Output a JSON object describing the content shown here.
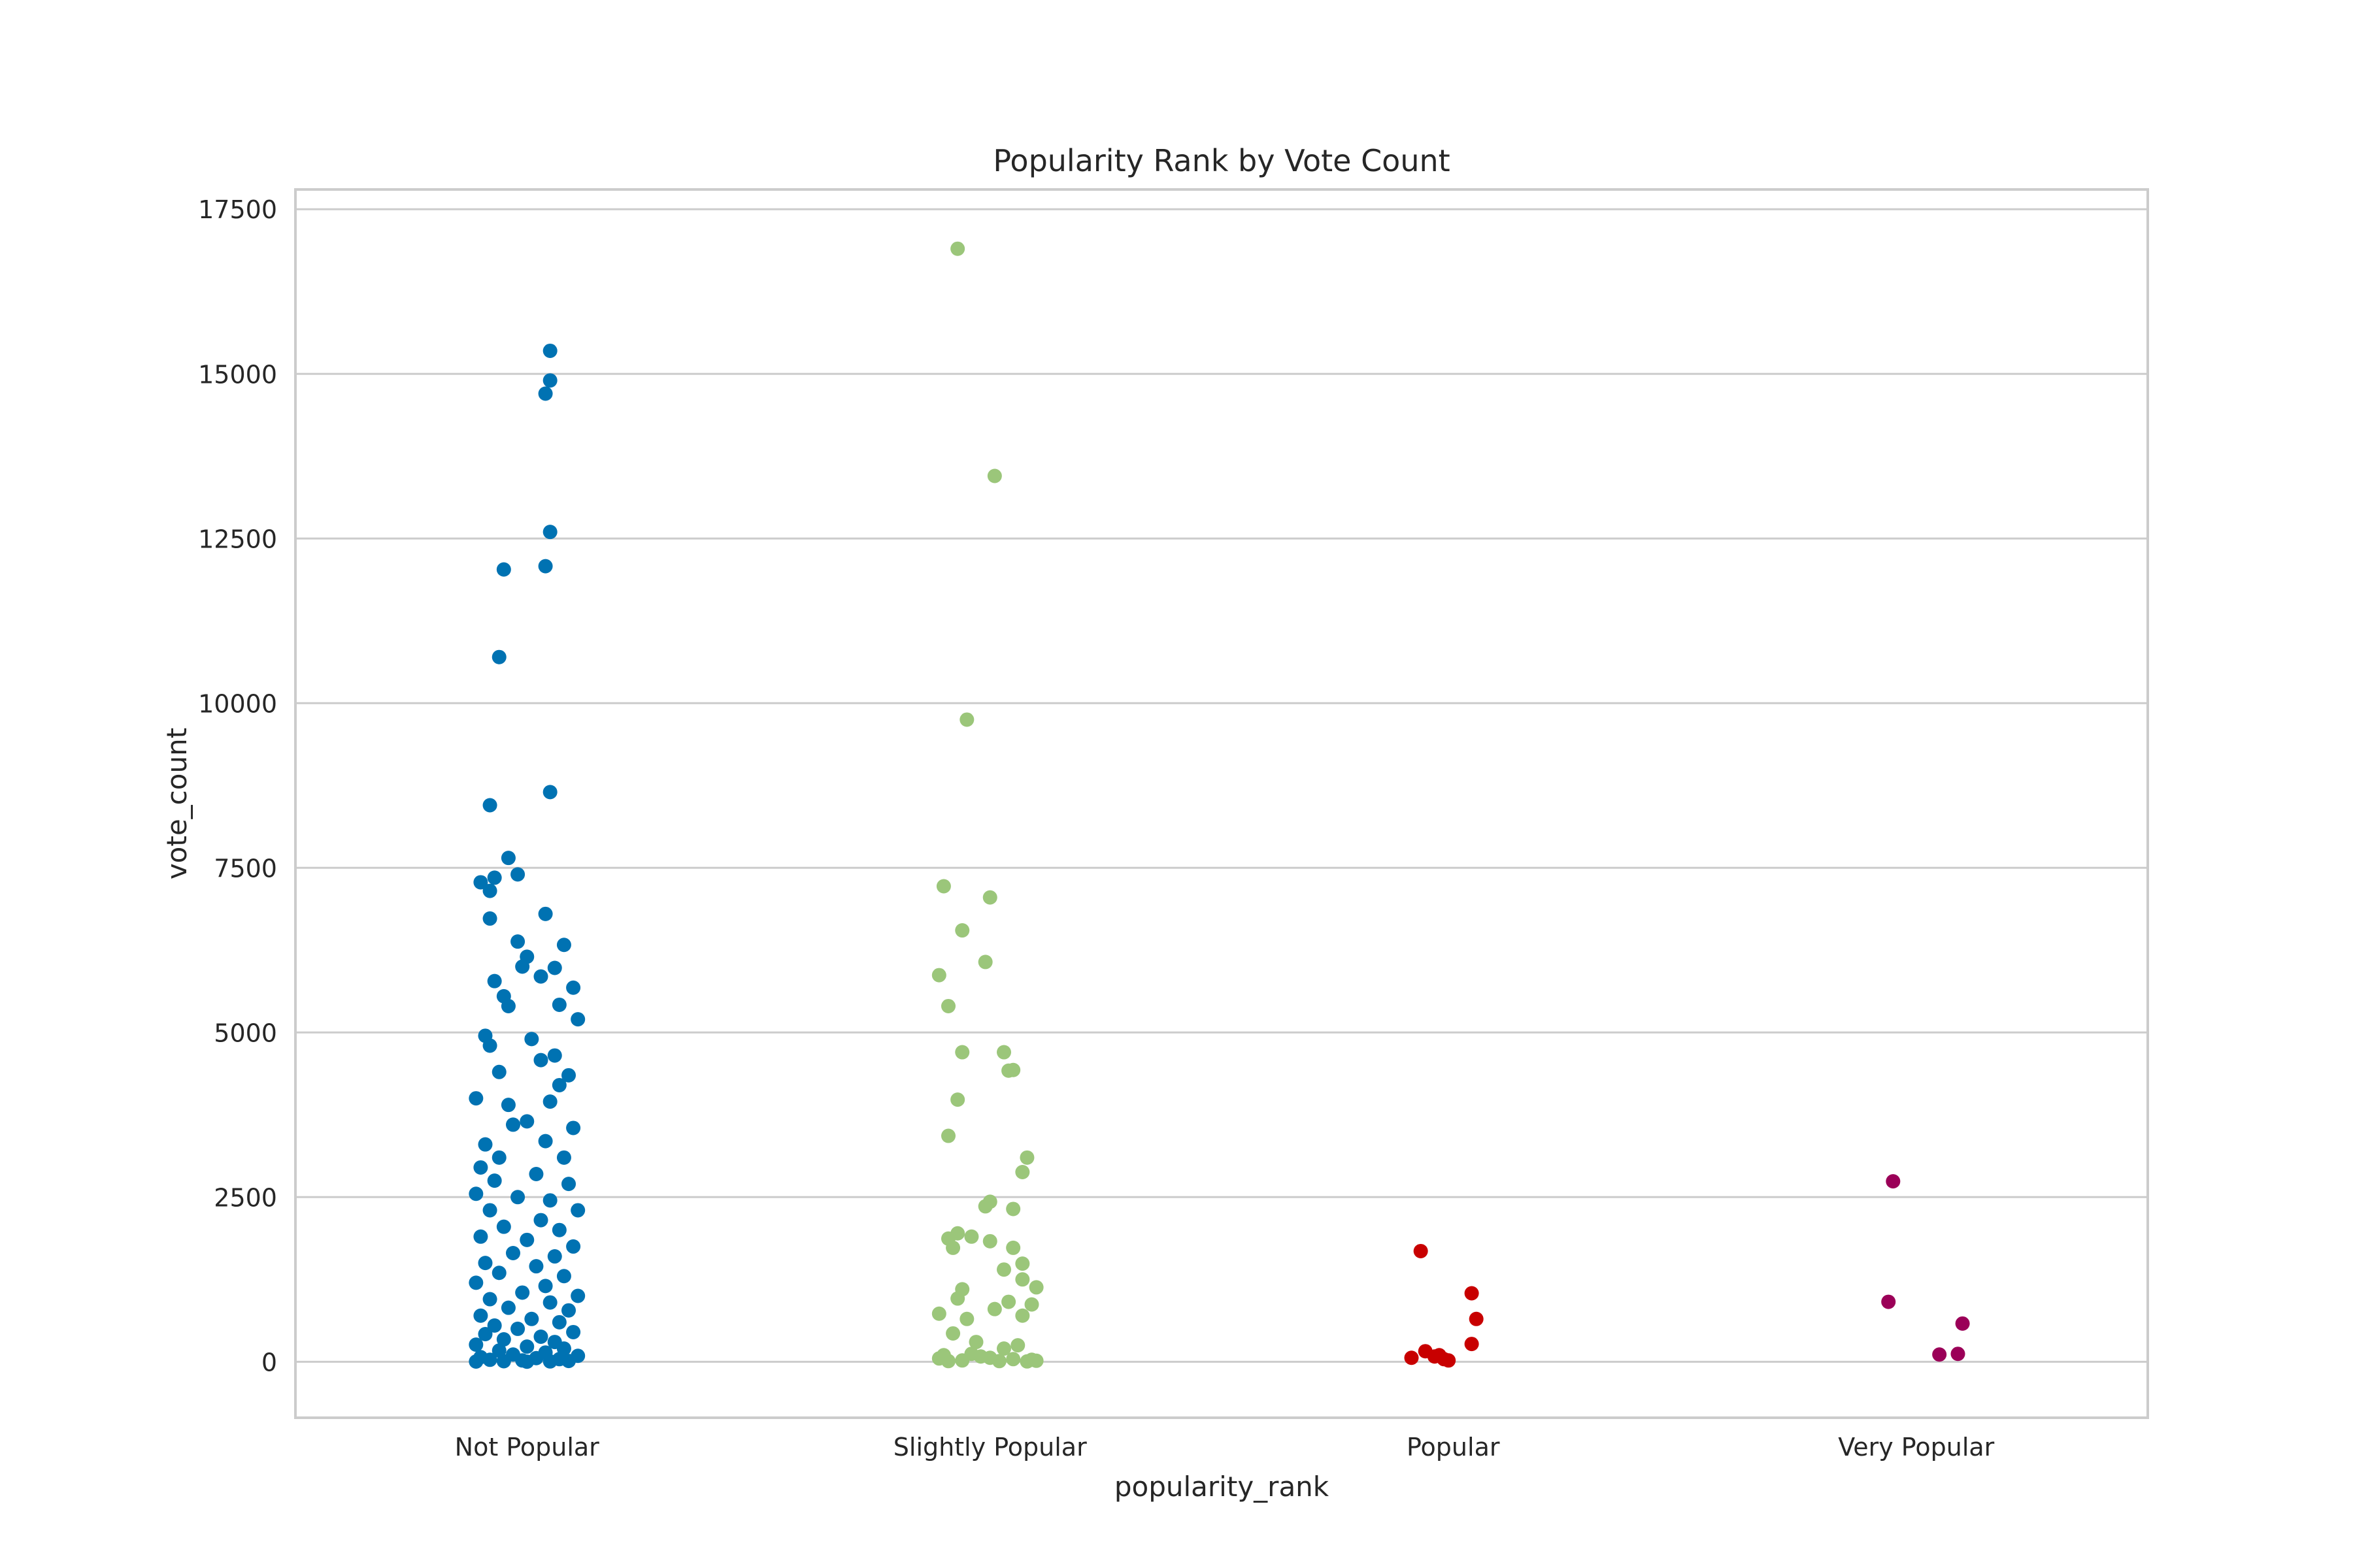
{
  "chart_data": {
    "type": "scatter",
    "subtype": "strip",
    "title": "Popularity Rank by Vote Count",
    "xlabel": "popularity_rank",
    "ylabel": "vote_count",
    "categories": [
      "Not Popular",
      "Slightly Popular",
      "Popular",
      "Very Popular"
    ],
    "ylim": [
      -850,
      17800
    ],
    "yticks": [
      0,
      2500,
      5000,
      7500,
      10000,
      12500,
      15000,
      17500
    ],
    "ytick_labels": [
      "0",
      "2500",
      "5000",
      "7500",
      "10000",
      "12500",
      "15000",
      "17500"
    ],
    "grid": true,
    "legend": "none",
    "colors": [
      "#0072b2",
      "#9bc67a",
      "#c80000",
      "#9b0058"
    ],
    "series": [
      {
        "category": "Not Popular",
        "color": "#0072b2",
        "points": [
          [
            0.05,
            15350
          ],
          [
            0.05,
            14900
          ],
          [
            0.04,
            14700
          ],
          [
            0.05,
            12600
          ],
          [
            0.04,
            12080
          ],
          [
            -0.05,
            12030
          ],
          [
            -0.06,
            10700
          ],
          [
            -0.08,
            8450
          ],
          [
            0.05,
            8650
          ],
          [
            -0.04,
            7650
          ],
          [
            -0.1,
            7280
          ],
          [
            -0.07,
            7350
          ],
          [
            -0.08,
            7150
          ],
          [
            -0.02,
            7400
          ],
          [
            0.04,
            6800
          ],
          [
            -0.08,
            6730
          ],
          [
            -0.02,
            6380
          ],
          [
            0.08,
            6330
          ],
          [
            0.0,
            6150
          ],
          [
            -0.01,
            6000
          ],
          [
            0.06,
            5980
          ],
          [
            0.03,
            5850
          ],
          [
            -0.07,
            5780
          ],
          [
            0.1,
            5680
          ],
          [
            -0.05,
            5550
          ],
          [
            -0.04,
            5400
          ],
          [
            0.07,
            5420
          ],
          [
            0.11,
            5200
          ],
          [
            -0.09,
            4950
          ],
          [
            0.01,
            4900
          ],
          [
            -0.08,
            4800
          ],
          [
            0.06,
            4650
          ],
          [
            0.03,
            4580
          ],
          [
            -0.06,
            4400
          ],
          [
            0.09,
            4350
          ],
          [
            0.07,
            4200
          ],
          [
            -0.11,
            4000
          ],
          [
            -0.04,
            3900
          ],
          [
            0.05,
            3950
          ],
          [
            -0.03,
            3600
          ],
          [
            0.0,
            3650
          ],
          [
            0.1,
            3550
          ],
          [
            -0.09,
            3300
          ],
          [
            0.04,
            3350
          ],
          [
            -0.06,
            3100
          ],
          [
            0.08,
            3100
          ],
          [
            -0.1,
            2950
          ],
          [
            0.02,
            2850
          ],
          [
            -0.07,
            2750
          ],
          [
            0.09,
            2700
          ],
          [
            -0.11,
            2550
          ],
          [
            -0.02,
            2500
          ],
          [
            0.05,
            2450
          ],
          [
            -0.08,
            2300
          ],
          [
            0.11,
            2300
          ],
          [
            0.03,
            2150
          ],
          [
            -0.05,
            2050
          ],
          [
            0.07,
            2000
          ],
          [
            -0.1,
            1900
          ],
          [
            0.0,
            1850
          ],
          [
            0.1,
            1750
          ],
          [
            -0.03,
            1650
          ],
          [
            0.06,
            1600
          ],
          [
            -0.09,
            1500
          ],
          [
            0.02,
            1450
          ],
          [
            -0.06,
            1350
          ],
          [
            0.08,
            1300
          ],
          [
            -0.11,
            1200
          ],
          [
            0.04,
            1150
          ],
          [
            -0.01,
            1050
          ],
          [
            0.11,
            1000
          ],
          [
            -0.08,
            950
          ],
          [
            0.05,
            900
          ],
          [
            -0.04,
            820
          ],
          [
            0.09,
            780
          ],
          [
            -0.1,
            700
          ],
          [
            0.01,
            650
          ],
          [
            0.07,
            600
          ],
          [
            -0.07,
            550
          ],
          [
            -0.02,
            500
          ],
          [
            0.1,
            450
          ],
          [
            -0.09,
            420
          ],
          [
            0.03,
            380
          ],
          [
            -0.05,
            340
          ],
          [
            0.06,
            300
          ],
          [
            -0.11,
            260
          ],
          [
            0.0,
            230
          ],
          [
            0.08,
            200
          ],
          [
            -0.06,
            170
          ],
          [
            0.04,
            140
          ],
          [
            -0.03,
            110
          ],
          [
            0.11,
            90
          ],
          [
            -0.1,
            70
          ],
          [
            0.02,
            55
          ],
          [
            0.07,
            40
          ],
          [
            -0.08,
            30
          ],
          [
            -0.01,
            20
          ],
          [
            0.09,
            12
          ],
          [
            -0.05,
            8
          ],
          [
            0.05,
            5
          ],
          [
            -0.11,
            3
          ],
          [
            0.0,
            1
          ]
        ]
      },
      {
        "category": "Slightly Popular",
        "color": "#9bc67a",
        "points": [
          [
            -0.07,
            16900
          ],
          [
            0.01,
            13450
          ],
          [
            -0.05,
            9750
          ],
          [
            -0.1,
            7220
          ],
          [
            0.0,
            7050
          ],
          [
            -0.06,
            6550
          ],
          [
            -0.11,
            5870
          ],
          [
            -0.01,
            6070
          ],
          [
            -0.09,
            5400
          ],
          [
            -0.06,
            4700
          ],
          [
            0.03,
            4700
          ],
          [
            0.05,
            4430
          ],
          [
            0.04,
            4420
          ],
          [
            -0.07,
            3980
          ],
          [
            -0.09,
            3430
          ],
          [
            0.08,
            3100
          ],
          [
            0.07,
            2880
          ],
          [
            0.0,
            2430
          ],
          [
            0.05,
            2320
          ],
          [
            -0.01,
            2360
          ],
          [
            -0.09,
            1870
          ],
          [
            -0.07,
            1950
          ],
          [
            -0.04,
            1900
          ],
          [
            0.0,
            1830
          ],
          [
            -0.08,
            1730
          ],
          [
            0.05,
            1730
          ],
          [
            0.07,
            1490
          ],
          [
            0.03,
            1400
          ],
          [
            0.07,
            1250
          ],
          [
            -0.06,
            1100
          ],
          [
            0.1,
            1130
          ],
          [
            0.09,
            870
          ],
          [
            -0.07,
            960
          ],
          [
            0.04,
            910
          ],
          [
            -0.11,
            730
          ],
          [
            0.01,
            800
          ],
          [
            -0.05,
            650
          ],
          [
            0.07,
            700
          ],
          [
            -0.08,
            430
          ],
          [
            -0.03,
            300
          ],
          [
            0.06,
            250
          ],
          [
            -0.1,
            100
          ],
          [
            -0.02,
            80
          ],
          [
            0.0,
            60
          ],
          [
            0.05,
            40
          ],
          [
            0.09,
            30
          ],
          [
            -0.06,
            20
          ],
          [
            -0.11,
            50
          ],
          [
            0.02,
            10
          ],
          [
            0.08,
            5
          ],
          [
            -0.04,
            120
          ],
          [
            0.03,
            200
          ],
          [
            -0.09,
            10
          ],
          [
            0.1,
            15
          ]
        ]
      },
      {
        "category": "Popular",
        "color": "#c80000",
        "points": [
          [
            -0.07,
            1680
          ],
          [
            0.04,
            1040
          ],
          [
            0.05,
            650
          ],
          [
            0.04,
            270
          ],
          [
            -0.06,
            160
          ],
          [
            -0.03,
            100
          ],
          [
            -0.09,
            60
          ],
          [
            -0.02,
            40
          ],
          [
            -0.04,
            80
          ],
          [
            -0.01,
            20
          ]
        ]
      },
      {
        "category": "Very Popular",
        "color": "#9b0058",
        "points": [
          [
            -0.05,
            2740
          ],
          [
            -0.06,
            910
          ],
          [
            0.1,
            580
          ],
          [
            0.09,
            120
          ],
          [
            0.05,
            110
          ]
        ]
      }
    ]
  }
}
